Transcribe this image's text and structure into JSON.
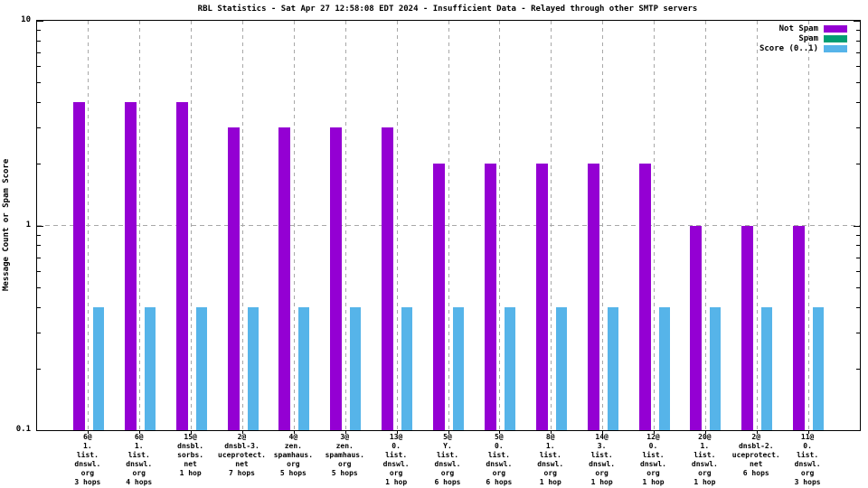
{
  "title": "RBL Statistics - Sat Apr 27 12:58:08 EDT 2024 - Insufficient Data - Relayed through other SMTP servers",
  "colors": {
    "not_spam": "#9400d3",
    "spam": "#009e73",
    "score": "#56b4e9",
    "grid": "#a8a8a8",
    "axis": "#000000",
    "background": "#ffffff"
  },
  "chart_data": {
    "type": "bar",
    "yscale": "log",
    "title": "RBL Statistics - Sat Apr 27 12:58:08 EDT 2024 - Insufficient Data - Relayed through other SMTP servers",
    "xlabel": "",
    "ylabel": "Message Count or Spam Score",
    "ylim": [
      0.1,
      10
    ],
    "yticks": [
      {
        "value": 10,
        "label": "10"
      },
      {
        "value": 1,
        "label": "1"
      },
      {
        "value": 0.1,
        "label": "0.1"
      }
    ],
    "grid": true,
    "legend_position": "top-right",
    "categories": [
      [
        "6@",
        "1.",
        "list.",
        "dnswl.",
        "org",
        "3 hops"
      ],
      [
        "6@",
        "1.",
        "list.",
        "dnswl.",
        "org",
        "4 hops"
      ],
      [
        "15@",
        "dnsbl.",
        "sorbs.",
        "net",
        "1 hop"
      ],
      [
        "2@",
        "dnsbl-3.",
        "uceprotect.",
        "net",
        "7 hops"
      ],
      [
        "4@",
        "zen.",
        "spamhaus.",
        "org",
        "5 hops"
      ],
      [
        "3@",
        "zen.",
        "spamhaus.",
        "org",
        "5 hops"
      ],
      [
        "13@",
        "0.",
        "list.",
        "dnswl.",
        "org",
        "1 hop"
      ],
      [
        "5@",
        "Y.",
        "list.",
        "dnswl.",
        "org",
        "6 hops"
      ],
      [
        "5@",
        "0.",
        "list.",
        "dnswl.",
        "org",
        "6 hops"
      ],
      [
        "8@",
        "1.",
        "list.",
        "dnswl.",
        "org",
        "1 hop"
      ],
      [
        "14@",
        "3.",
        "list.",
        "dnswl.",
        "org",
        "1 hop"
      ],
      [
        "12@",
        "0.",
        "list.",
        "dnswl.",
        "org",
        "1 hop"
      ],
      [
        "20@",
        "1.",
        "list.",
        "dnswl.",
        "org",
        "1 hop"
      ],
      [
        "2@",
        "dnsbl-2.",
        "uceprotect.",
        "net",
        "6 hops"
      ],
      [
        "11@",
        "0.",
        "list.",
        "dnswl.",
        "org",
        "3 hops"
      ]
    ],
    "series": [
      {
        "name": "Not Spam",
        "color": "#9400d3",
        "values": [
          4,
          4,
          4,
          3,
          3,
          3,
          3,
          2,
          2,
          2,
          2,
          2,
          1,
          1,
          1
        ]
      },
      {
        "name": "Spam",
        "color": "#009e73",
        "values": [
          0,
          0,
          0,
          0,
          0,
          0,
          0,
          0,
          0,
          0,
          0,
          0,
          0,
          0,
          0
        ]
      },
      {
        "name": "Score (0..1)",
        "color": "#56b4e9",
        "values": [
          0.4,
          0.4,
          0.4,
          0.4,
          0.4,
          0.4,
          0.4,
          0.4,
          0.4,
          0.4,
          0.4,
          0.4,
          0.4,
          0.4,
          0.4
        ]
      }
    ]
  }
}
